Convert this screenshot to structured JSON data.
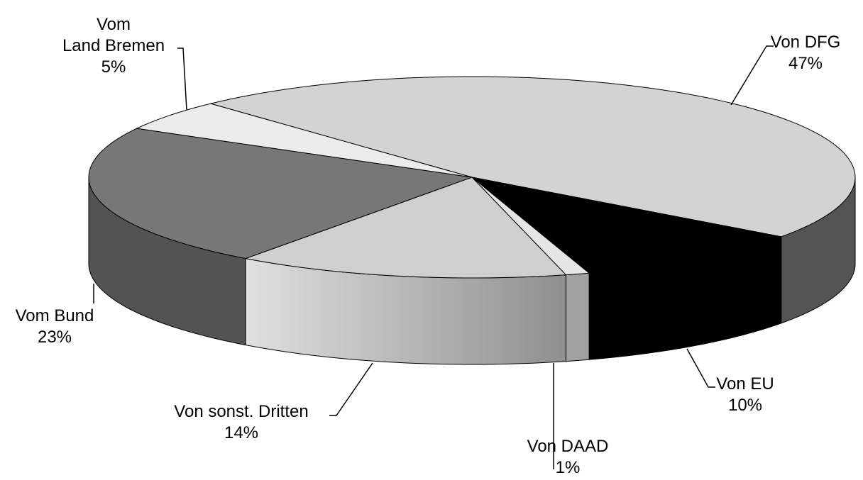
{
  "chart_data": {
    "type": "pie3d",
    "categories": [
      "Von DFG",
      "Von EU",
      "Von DAAD",
      "Von sonst. Dritten",
      "Vom Bund",
      "Vom\nLand Bremen"
    ],
    "values": [
      47,
      10,
      1,
      14,
      23,
      5
    ],
    "value_labels": [
      "47%",
      "10%",
      "1%",
      "14%",
      "23%",
      "5%"
    ],
    "colors": [
      "#d3d3d3",
      "#000000",
      "#e6e6e6",
      "#cfcfcf",
      "#777777",
      "#ececec"
    ]
  }
}
